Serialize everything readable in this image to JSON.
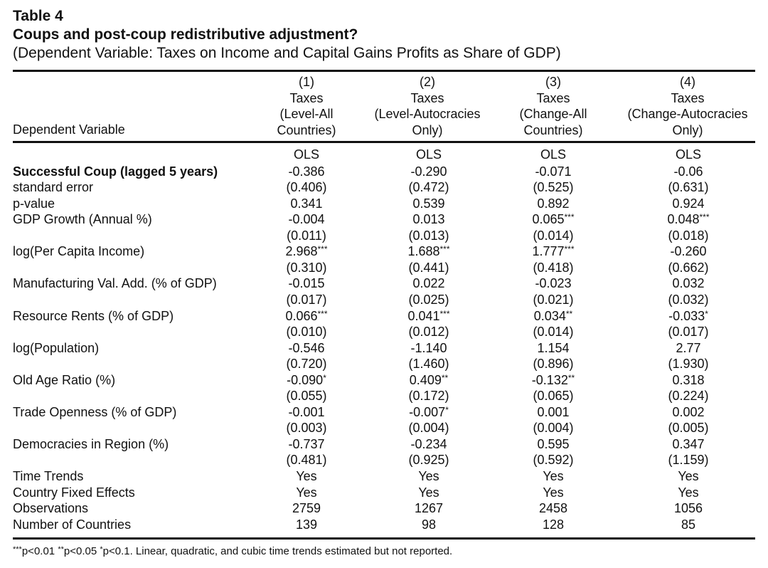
{
  "table": {
    "label": "Table 4",
    "title": "Coups and post-coup redistributive adjustment?",
    "subtitle": "(Dependent Variable: Taxes on Income and Capital Gains Profits as Share of GDP)",
    "header_left": "Dependent Variable",
    "columns": [
      {
        "num": "(1)",
        "line1": "Taxes",
        "line2": "(Level-All",
        "line3": "Countries)",
        "method": "OLS"
      },
      {
        "num": "(2)",
        "line1": "Taxes",
        "line2": "(Level-Autocracies",
        "line3": "Only)",
        "method": "OLS"
      },
      {
        "num": "(3)",
        "line1": "Taxes",
        "line2": "(Change-All",
        "line3": "Countries)",
        "method": "OLS"
      },
      {
        "num": "(4)",
        "line1": "Taxes",
        "line2": "(Change-Autocracies",
        "line3": "Only)",
        "method": "OLS"
      }
    ],
    "rows": [
      {
        "label": "Successful Coup (lagged 5 years)",
        "bold": true,
        "cells": [
          {
            "v": "-0.386",
            "s": ""
          },
          {
            "v": "-0.290",
            "s": ""
          },
          {
            "v": "-0.071",
            "s": ""
          },
          {
            "v": "-0.06",
            "s": ""
          }
        ]
      },
      {
        "label": "standard error",
        "cells": [
          {
            "v": "(0.406)",
            "s": ""
          },
          {
            "v": "(0.472)",
            "s": ""
          },
          {
            "v": "(0.525)",
            "s": ""
          },
          {
            "v": "(0.631)",
            "s": ""
          }
        ]
      },
      {
        "label": "p-value",
        "cells": [
          {
            "v": "0.341",
            "s": ""
          },
          {
            "v": "0.539",
            "s": ""
          },
          {
            "v": "0.892",
            "s": ""
          },
          {
            "v": "0.924",
            "s": ""
          }
        ]
      },
      {
        "label": "GDP Growth (Annual %)",
        "cells": [
          {
            "v": "-0.004",
            "s": ""
          },
          {
            "v": "0.013",
            "s": ""
          },
          {
            "v": "0.065",
            "s": "***"
          },
          {
            "v": "0.048",
            "s": "***"
          }
        ]
      },
      {
        "label": "",
        "cells": [
          {
            "v": "(0.011)",
            "s": ""
          },
          {
            "v": "(0.013)",
            "s": ""
          },
          {
            "v": "(0.014)",
            "s": ""
          },
          {
            "v": "(0.018)",
            "s": ""
          }
        ]
      },
      {
        "label": "log(Per Capita Income)",
        "cells": [
          {
            "v": "2.968",
            "s": "***"
          },
          {
            "v": "1.688",
            "s": "***"
          },
          {
            "v": "1.777",
            "s": "***"
          },
          {
            "v": "-0.260",
            "s": ""
          }
        ]
      },
      {
        "label": "",
        "cells": [
          {
            "v": "(0.310)",
            "s": ""
          },
          {
            "v": "(0.441)",
            "s": ""
          },
          {
            "v": "(0.418)",
            "s": ""
          },
          {
            "v": "(0.662)",
            "s": ""
          }
        ]
      },
      {
        "label": "Manufacturing Val. Add. (% of GDP)",
        "cells": [
          {
            "v": "-0.015",
            "s": ""
          },
          {
            "v": "0.022",
            "s": ""
          },
          {
            "v": "-0.023",
            "s": ""
          },
          {
            "v": "0.032",
            "s": ""
          }
        ]
      },
      {
        "label": "",
        "cells": [
          {
            "v": "(0.017)",
            "s": ""
          },
          {
            "v": "(0.025)",
            "s": ""
          },
          {
            "v": "(0.021)",
            "s": ""
          },
          {
            "v": "(0.032)",
            "s": ""
          }
        ]
      },
      {
        "label": "Resource Rents (% of GDP)",
        "cells": [
          {
            "v": "0.066",
            "s": "***"
          },
          {
            "v": "0.041",
            "s": "***"
          },
          {
            "v": "0.034",
            "s": "**"
          },
          {
            "v": "-0.033",
            "s": "*"
          }
        ]
      },
      {
        "label": "",
        "cells": [
          {
            "v": "(0.010)",
            "s": ""
          },
          {
            "v": "(0.012)",
            "s": ""
          },
          {
            "v": "(0.014)",
            "s": ""
          },
          {
            "v": "(0.017)",
            "s": ""
          }
        ]
      },
      {
        "label": "log(Population)",
        "cells": [
          {
            "v": "-0.546",
            "s": ""
          },
          {
            "v": "-1.140",
            "s": ""
          },
          {
            "v": "1.154",
            "s": ""
          },
          {
            "v": "2.77",
            "s": ""
          }
        ]
      },
      {
        "label": "",
        "cells": [
          {
            "v": "(0.720)",
            "s": ""
          },
          {
            "v": "(1.460)",
            "s": ""
          },
          {
            "v": "(0.896)",
            "s": ""
          },
          {
            "v": "(1.930)",
            "s": ""
          }
        ]
      },
      {
        "label": "Old Age Ratio (%)",
        "cells": [
          {
            "v": "-0.090",
            "s": "*"
          },
          {
            "v": "0.409",
            "s": "**"
          },
          {
            "v": "-0.132",
            "s": "**"
          },
          {
            "v": "0.318",
            "s": ""
          }
        ]
      },
      {
        "label": "",
        "cells": [
          {
            "v": "(0.055)",
            "s": ""
          },
          {
            "v": "(0.172)",
            "s": ""
          },
          {
            "v": "(0.065)",
            "s": ""
          },
          {
            "v": "(0.224)",
            "s": ""
          }
        ]
      },
      {
        "label": "Trade Openness (% of GDP)",
        "cells": [
          {
            "v": "-0.001",
            "s": ""
          },
          {
            "v": "-0.007",
            "s": "*"
          },
          {
            "v": "0.001",
            "s": ""
          },
          {
            "v": "0.002",
            "s": ""
          }
        ]
      },
      {
        "label": "",
        "cells": [
          {
            "v": "(0.003)",
            "s": ""
          },
          {
            "v": "(0.004)",
            "s": ""
          },
          {
            "v": "(0.004)",
            "s": ""
          },
          {
            "v": "(0.005)",
            "s": ""
          }
        ]
      },
      {
        "label": "Democracies in Region (%)",
        "cells": [
          {
            "v": "-0.737",
            "s": ""
          },
          {
            "v": "-0.234",
            "s": ""
          },
          {
            "v": "0.595",
            "s": ""
          },
          {
            "v": "0.347",
            "s": ""
          }
        ]
      },
      {
        "label": "",
        "cells": [
          {
            "v": "(0.481)",
            "s": ""
          },
          {
            "v": "(0.925)",
            "s": ""
          },
          {
            "v": "(0.592)",
            "s": ""
          },
          {
            "v": "(1.159)",
            "s": ""
          }
        ]
      },
      {
        "label": "Time Trends",
        "cells": [
          {
            "v": "Yes",
            "s": ""
          },
          {
            "v": "Yes",
            "s": ""
          },
          {
            "v": "Yes",
            "s": ""
          },
          {
            "v": "Yes",
            "s": ""
          }
        ]
      },
      {
        "label": "Country Fixed Effects",
        "cells": [
          {
            "v": "Yes",
            "s": ""
          },
          {
            "v": "Yes",
            "s": ""
          },
          {
            "v": "Yes",
            "s": ""
          },
          {
            "v": "Yes",
            "s": ""
          }
        ]
      },
      {
        "label": "Observations",
        "cells": [
          {
            "v": "2759",
            "s": ""
          },
          {
            "v": "1267",
            "s": ""
          },
          {
            "v": "2458",
            "s": ""
          },
          {
            "v": "1056",
            "s": ""
          }
        ]
      },
      {
        "label": "Number of Countries",
        "cells": [
          {
            "v": "139",
            "s": ""
          },
          {
            "v": "98",
            "s": ""
          },
          {
            "v": "128",
            "s": ""
          },
          {
            "v": "85",
            "s": ""
          }
        ]
      }
    ],
    "footnote": {
      "s1": "***",
      "t1": "p<0.01 ",
      "s2": "**",
      "t2": "p<0.05 ",
      "s3": "*",
      "t3": "p<0.1. Linear, quadratic, and cubic time trends estimated but not reported."
    }
  }
}
